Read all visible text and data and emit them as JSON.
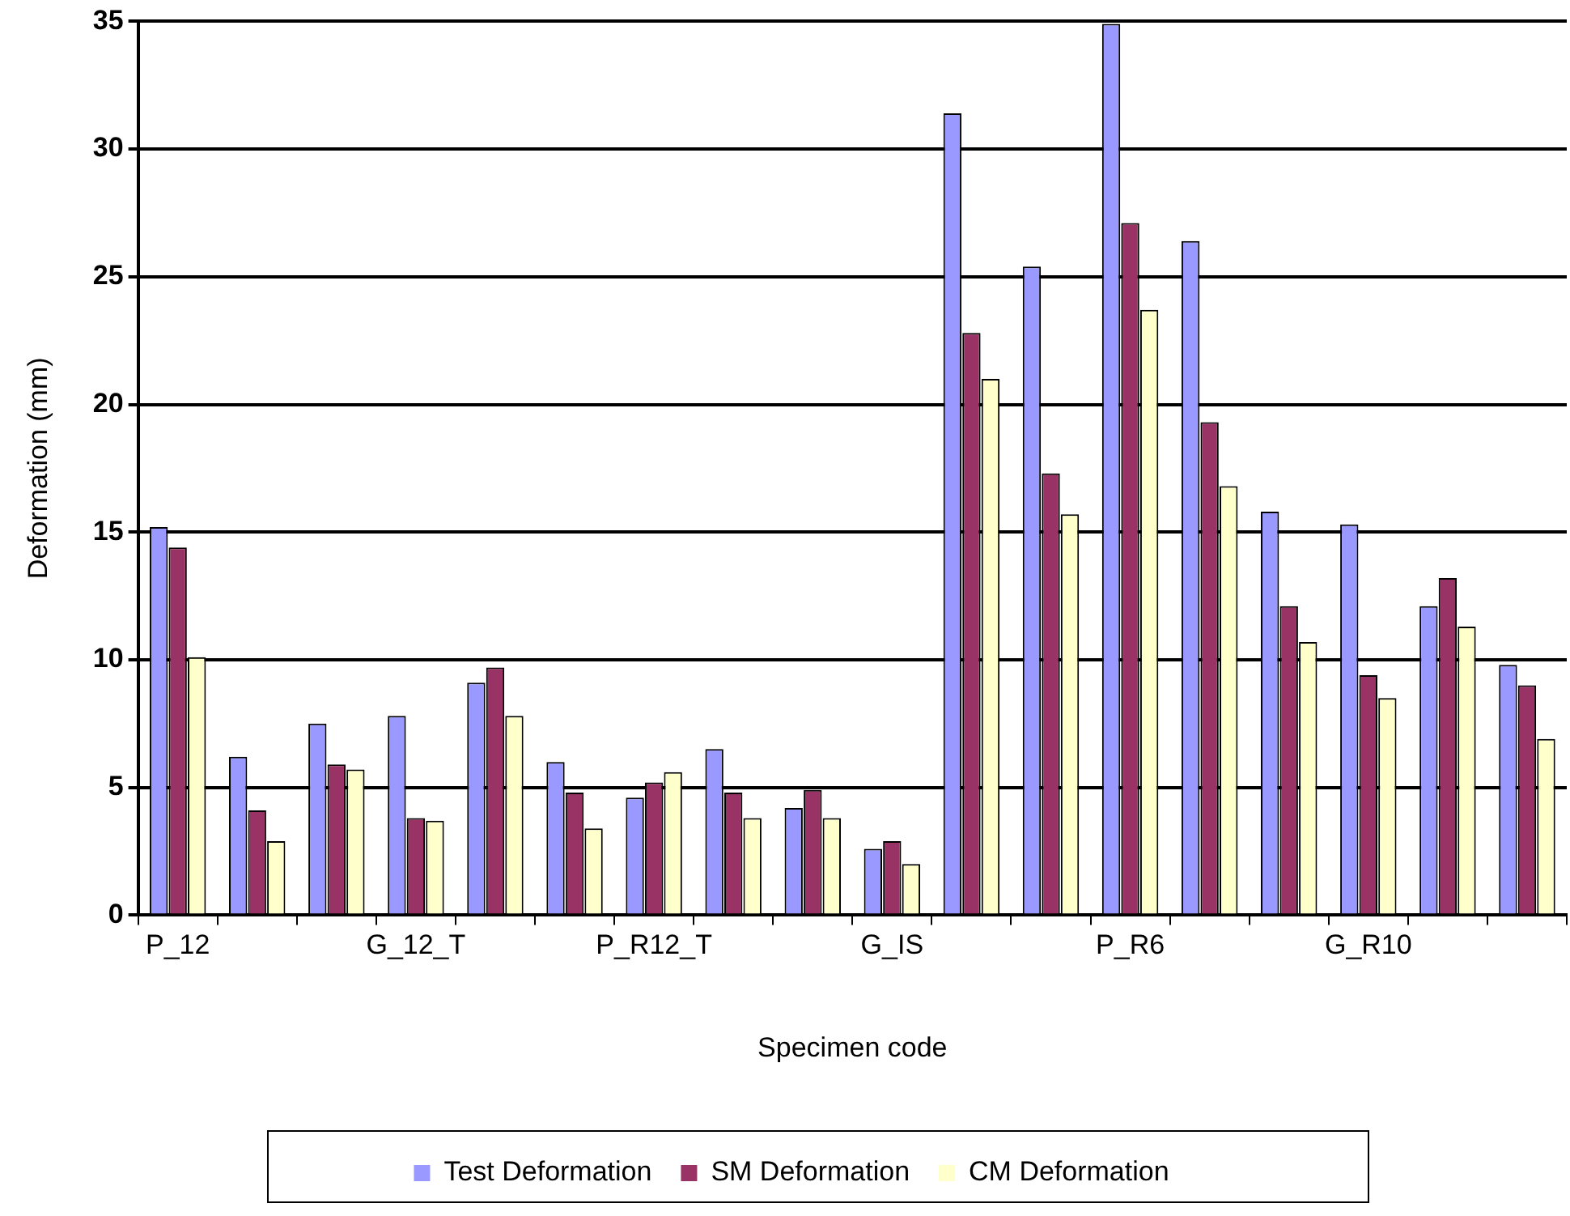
{
  "chart_data": {
    "type": "bar",
    "xlabel": "Specimen code",
    "ylabel": "Deformation (mm)",
    "categories": [
      "P_12",
      null,
      null,
      "G_12_T",
      null,
      null,
      "P_R12_T",
      null,
      null,
      "G_IS",
      null,
      null,
      "P_R6",
      null,
      null,
      "G_R10",
      null,
      null
    ],
    "series": [
      {
        "name": "Test Deformation",
        "color": "#9999ff",
        "values": [
          15.2,
          6.2,
          7.5,
          7.8,
          9.1,
          6.0,
          4.6,
          6.5,
          4.2,
          2.6,
          31.4,
          25.4,
          34.9,
          26.4,
          15.8,
          15.3,
          12.1,
          9.8
        ]
      },
      {
        "name": "SM Deformation",
        "color": "#993366",
        "values": [
          14.4,
          4.1,
          5.9,
          3.8,
          9.7,
          4.8,
          5.2,
          4.8,
          4.9,
          2.9,
          22.8,
          17.3,
          27.1,
          19.3,
          12.1,
          9.4,
          13.2,
          9.0
        ]
      },
      {
        "name": "CM Deformation",
        "color": "#ffffcc",
        "values": [
          10.1,
          2.9,
          5.7,
          3.7,
          7.8,
          3.4,
          5.6,
          3.8,
          3.8,
          2.0,
          21.0,
          15.7,
          23.7,
          16.8,
          10.7,
          8.5,
          11.3,
          6.9
        ]
      }
    ],
    "ylim": [
      0,
      35
    ],
    "yticks": [
      0,
      5,
      10,
      15,
      20,
      25,
      30,
      35
    ],
    "grid": "y",
    "legend": "bottom"
  }
}
